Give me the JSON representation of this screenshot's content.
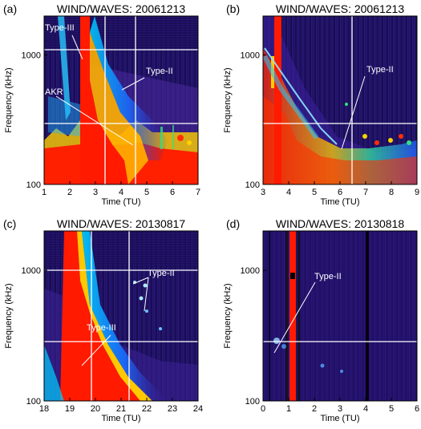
{
  "chart_data": [
    {
      "type": "heatmap",
      "panel_label": "(a)",
      "title": "WIND/WAVES: 20061213",
      "xlabel": "Time (TU)",
      "ylabel": "Frequency (kHz)",
      "x_ticks": [
        "1",
        "2",
        "3",
        "4",
        "5",
        "6",
        "7"
      ],
      "y_ticks": [
        "100",
        "1000"
      ],
      "xlim": [
        1,
        7
      ],
      "ylim": [
        100,
        2000
      ],
      "y_scale": "log",
      "grid": true,
      "grid_x": [
        3.25,
        4.45
      ],
      "grid_y": [
        1000,
        300
      ],
      "annotations": [
        {
          "text": "Type-III",
          "points_to": [
            2.3,
            1000
          ]
        },
        {
          "text": "Type-II",
          "points_to": [
            3.8,
            500
          ]
        },
        {
          "text": "AKR",
          "points_to": [
            4.2,
            190
          ]
        }
      ]
    },
    {
      "type": "heatmap",
      "panel_label": "(b)",
      "title": "WIND/WAVES: 20061213",
      "xlabel": "Time (TU)",
      "ylabel": "Frequency (kHz)",
      "x_ticks": [
        "3",
        "4",
        "5",
        "6",
        "7",
        "8",
        "9"
      ],
      "y_ticks": [
        "100",
        "1000"
      ],
      "xlim": [
        3,
        9
      ],
      "ylim": [
        100,
        2000
      ],
      "y_scale": "log",
      "grid": true,
      "grid_x": [
        6.3
      ],
      "grid_y": [
        300
      ],
      "annotations": [
        {
          "text": "Type-II",
          "points_to": [
            5.9,
            200
          ]
        }
      ]
    },
    {
      "type": "heatmap",
      "panel_label": "(c)",
      "title": "WIND/WAVES: 20130817",
      "xlabel": "Time (TU)",
      "ylabel": "Frequency (kHz)",
      "x_ticks": [
        "18",
        "19",
        "20",
        "21",
        "22",
        "23",
        "24"
      ],
      "y_ticks": [
        "100",
        "1000"
      ],
      "xlim": [
        18,
        24
      ],
      "ylim": [
        100,
        2000
      ],
      "y_scale": "log",
      "grid": true,
      "grid_x": [
        19.75,
        21.1
      ],
      "grid_y": [
        1000,
        300
      ],
      "annotations": [
        {
          "text": "Type-II",
          "points_to": [
            21.1,
            800
          ]
        },
        {
          "text": "Type-III",
          "points_to": [
            19.5,
            190
          ]
        }
      ]
    },
    {
      "type": "heatmap",
      "panel_label": "(d)",
      "title": "WIND/WAVES: 20130818",
      "xlabel": "Time (TU)",
      "ylabel": "Frequency (kHz)",
      "x_ticks": [
        "0",
        "1",
        "2",
        "3",
        "4",
        "5",
        "6"
      ],
      "y_ticks": [
        "100",
        "1000"
      ],
      "xlim": [
        0,
        6
      ],
      "ylim": [
        100,
        2000
      ],
      "y_scale": "log",
      "grid": true,
      "grid_x": [],
      "grid_y": [
        300
      ],
      "annotations": [
        {
          "text": "Type-II",
          "points_to": [
            0.5,
            260
          ]
        }
      ]
    }
  ]
}
